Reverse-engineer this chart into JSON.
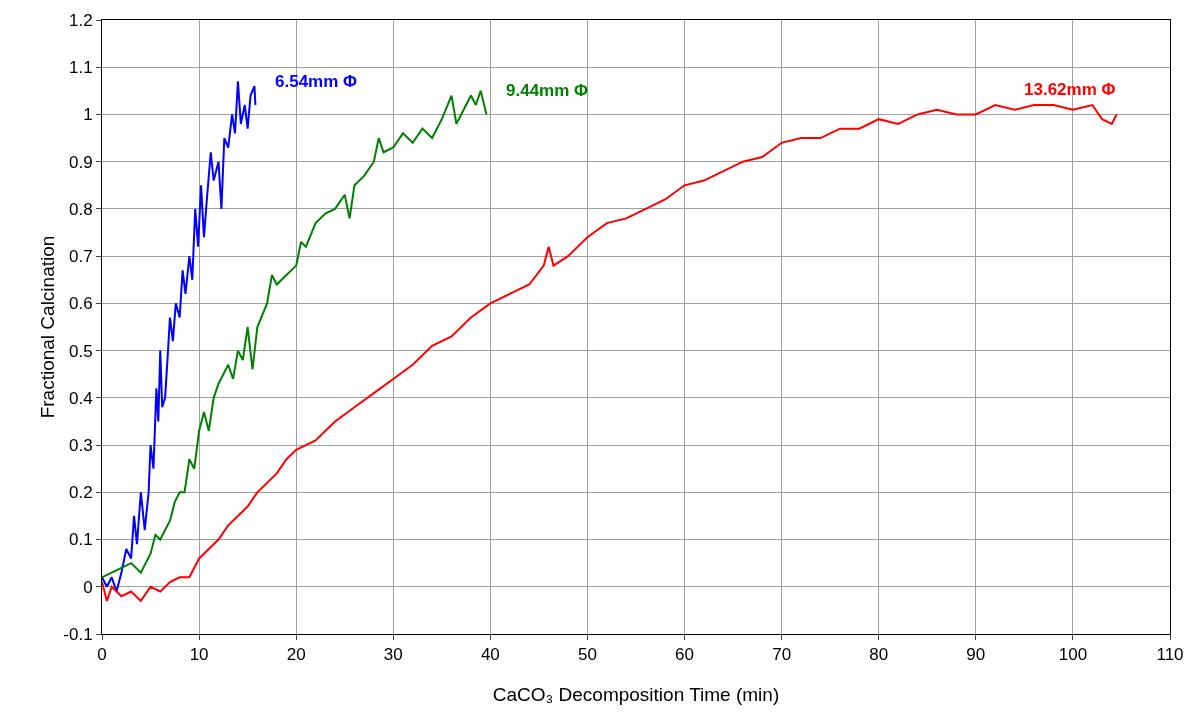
{
  "chart_data": {
    "type": "line",
    "xlabel": "CaCO₃ Decomposition Time (min)",
    "ylabel": "Fractional Calcination",
    "xlim": [
      0,
      110
    ],
    "xticks": [
      0,
      10,
      20,
      30,
      40,
      50,
      60,
      70,
      80,
      90,
      100,
      110
    ],
    "ylim": [
      -0.1,
      1.2
    ],
    "yticks": [
      -0.1,
      0,
      0.1,
      0.2,
      0.3,
      0.4,
      0.5,
      0.6,
      0.7,
      0.8,
      0.9,
      1,
      1.1,
      1.2
    ],
    "grid": true,
    "legend": false,
    "marker": "none",
    "line_style": "solid",
    "series": [
      {
        "name": "6.54mm Φ",
        "color": "#0000ff",
        "x": [
          0,
          0.5,
          1,
          1.5,
          2,
          2.5,
          3,
          3.3,
          3.6,
          4,
          4.4,
          4.8,
          5,
          5.3,
          5.6,
          5.8,
          6,
          6.2,
          6.5,
          6.8,
          7,
          7.3,
          7.6,
          8,
          8.3,
          8.6,
          9,
          9.3,
          9.6,
          9.9,
          10.2,
          10.5,
          10.8,
          11.2,
          11.5,
          12,
          12.3,
          12.6,
          13,
          13.4,
          13.7,
          14,
          14.3,
          14.7,
          15,
          15.3,
          15.7,
          15.8
        ],
        "values": [
          0.02,
          0,
          0.02,
          -0.01,
          0.03,
          0.08,
          0.06,
          0.15,
          0.09,
          0.2,
          0.12,
          0.2,
          0.3,
          0.25,
          0.42,
          0.35,
          0.5,
          0.38,
          0.4,
          0.5,
          0.57,
          0.52,
          0.6,
          0.57,
          0.67,
          0.62,
          0.7,
          0.65,
          0.8,
          0.72,
          0.85,
          0.74,
          0.82,
          0.92,
          0.86,
          0.9,
          0.8,
          0.95,
          0.93,
          1.0,
          0.96,
          1.07,
          0.98,
          1.02,
          0.97,
          1.04,
          1.06,
          1.02
        ]
      },
      {
        "name": "9.44mm Φ",
        "color": "#008000",
        "x": [
          0,
          1,
          2,
          3,
          4,
          5,
          5.5,
          6,
          7,
          7.5,
          8,
          8.5,
          9,
          9.5,
          10,
          10.5,
          11,
          11.5,
          12,
          12.5,
          13,
          13.5,
          14,
          14.5,
          15,
          15.5,
          16,
          17,
          17.5,
          18,
          19,
          20,
          20.5,
          21,
          22,
          23,
          24,
          25,
          25.5,
          26,
          27,
          28,
          28.5,
          29,
          30,
          31,
          32,
          33,
          34,
          35,
          36,
          36.5,
          37,
          38,
          38.5,
          39,
          39.6
        ],
        "values": [
          0.02,
          0.03,
          0.04,
          0.05,
          0.03,
          0.07,
          0.11,
          0.1,
          0.14,
          0.18,
          0.2,
          0.2,
          0.27,
          0.25,
          0.33,
          0.37,
          0.33,
          0.4,
          0.43,
          0.45,
          0.47,
          0.44,
          0.5,
          0.48,
          0.55,
          0.46,
          0.55,
          0.6,
          0.66,
          0.64,
          0.66,
          0.68,
          0.73,
          0.72,
          0.77,
          0.79,
          0.8,
          0.83,
          0.78,
          0.85,
          0.87,
          0.9,
          0.95,
          0.92,
          0.93,
          0.96,
          0.94,
          0.97,
          0.95,
          0.99,
          1.04,
          0.98,
          1.0,
          1.04,
          1.02,
          1.05,
          1.0
        ]
      },
      {
        "name": "13.62mm Φ",
        "color": "#ff0000",
        "x": [
          0,
          0.5,
          1,
          2,
          3,
          4,
          5,
          6,
          7,
          8,
          9,
          10,
          11,
          12,
          13,
          14,
          15,
          16,
          17,
          18,
          19,
          20,
          22,
          24,
          26,
          28,
          30,
          32,
          34,
          36,
          38,
          40,
          42,
          44,
          45.5,
          46,
          46.5,
          48,
          50,
          52,
          54,
          56,
          58,
          60,
          62,
          64,
          66,
          68,
          70,
          72,
          74,
          76,
          78,
          80,
          82,
          84,
          86,
          88,
          90,
          92,
          94,
          96,
          98,
          100,
          102,
          103,
          104,
          104.5
        ],
        "values": [
          0.01,
          -0.03,
          0,
          -0.02,
          -0.01,
          -0.03,
          0,
          -0.01,
          0.01,
          0.02,
          0.02,
          0.06,
          0.08,
          0.1,
          0.13,
          0.15,
          0.17,
          0.2,
          0.22,
          0.24,
          0.27,
          0.29,
          0.31,
          0.35,
          0.38,
          0.41,
          0.44,
          0.47,
          0.51,
          0.53,
          0.57,
          0.6,
          0.62,
          0.64,
          0.68,
          0.72,
          0.68,
          0.7,
          0.74,
          0.77,
          0.78,
          0.8,
          0.82,
          0.85,
          0.86,
          0.88,
          0.9,
          0.91,
          0.94,
          0.95,
          0.95,
          0.97,
          0.97,
          0.99,
          0.98,
          1.0,
          1.01,
          1.0,
          1.0,
          1.02,
          1.01,
          1.02,
          1.02,
          1.01,
          1.02,
          0.99,
          0.98,
          1.0
        ]
      }
    ]
  }
}
